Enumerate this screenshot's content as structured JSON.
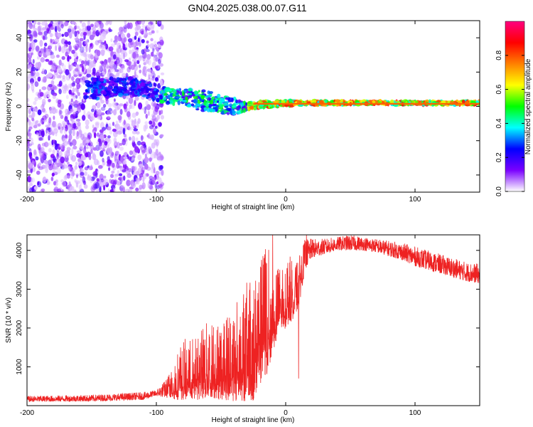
{
  "title": "GN04.2025.038.00.07.G11",
  "chart_data": [
    {
      "type": "heatmap",
      "title": "",
      "xlabel": "Height of straight line (km)",
      "ylabel": "Frequency (Hz)",
      "xlim": [
        -200,
        150
      ],
      "ylim": [
        -50,
        50
      ],
      "xticks": [
        -200,
        -100,
        0,
        100
      ],
      "xtick_labels": [
        "-200",
        "-100",
        "0",
        "100"
      ],
      "yticks": [
        -40,
        -20,
        0,
        20,
        40
      ],
      "ytick_labels": [
        "-40",
        "-20",
        "0",
        "20",
        "40"
      ],
      "colorbar": {
        "label": "Normalized spectral amplitude",
        "range": [
          0,
          1
        ],
        "ticks": [
          0.0,
          0.2,
          0.4,
          0.6,
          0.8
        ],
        "tick_labels": [
          "0.0",
          "0.2",
          "0.4",
          "0.6",
          "0.8"
        ],
        "colors": [
          "#ffffff",
          "#7a00ff",
          "#0000ff",
          "#00ffff",
          "#00ff00",
          "#ffff00",
          "#ff8000",
          "#ff0000",
          "#ff0080"
        ]
      },
      "features": {
        "noise_region_x": [
          -200,
          -95
        ],
        "signal_band": {
          "x": [
            -150,
            -120,
            -100,
            -80,
            -60,
            -40,
            -30,
            -20,
            0,
            50,
            100,
            150
          ],
          "center_hz": [
            10,
            12,
            8,
            5,
            3,
            0,
            0,
            1,
            2,
            2,
            2,
            2
          ],
          "half_width_hz": [
            6,
            5,
            5,
            5,
            6,
            5,
            2,
            2,
            1.5,
            1,
            1,
            1
          ]
        }
      }
    },
    {
      "type": "line",
      "title": "",
      "xlabel": "Height of straight line (km)",
      "ylabel": "SNR (10 * v/v)",
      "xlim": [
        -200,
        150
      ],
      "ylim": [
        0,
        4400
      ],
      "xticks": [
        -200,
        -100,
        0,
        100
      ],
      "xtick_labels": [
        "-200",
        "-100",
        "0",
        "100"
      ],
      "yticks": [
        1000,
        2000,
        3000,
        4000
      ],
      "ytick_labels": [
        "1000",
        "2000",
        "3000",
        "4000"
      ],
      "color": "#ee2222",
      "envelope": {
        "x": [
          -200,
          -150,
          -110,
          -100,
          -92,
          -85,
          -80,
          -70,
          -60,
          -50,
          -40,
          -30,
          -25,
          -20,
          -15,
          -10,
          -5,
          0,
          5,
          10,
          15,
          20,
          30,
          40,
          50,
          60,
          70,
          80,
          90,
          100,
          110,
          120,
          130,
          140,
          150
        ],
        "low": [
          100,
          110,
          150,
          250,
          200,
          150,
          150,
          150,
          150,
          150,
          100,
          100,
          100,
          500,
          700,
          1400,
          1800,
          2000,
          2200,
          2500,
          3500,
          3800,
          3900,
          4000,
          4000,
          4000,
          3950,
          3850,
          3750,
          3600,
          3500,
          3400,
          3300,
          3200,
          3150
        ],
        "high": [
          250,
          280,
          350,
          400,
          700,
          1300,
          1700,
          1800,
          2200,
          2200,
          2600,
          3200,
          3300,
          3600,
          4400,
          3700,
          3600,
          3800,
          3900,
          3800,
          4300,
          4300,
          4300,
          4350,
          4400,
          4350,
          4300,
          4250,
          4200,
          4100,
          4000,
          3900,
          3800,
          3700,
          3650
        ]
      },
      "notable_spikes": [
        {
          "x": -10,
          "y": 4400
        },
        {
          "x": 16,
          "y": 4400
        },
        {
          "x": 10,
          "y": 700
        }
      ]
    }
  ]
}
